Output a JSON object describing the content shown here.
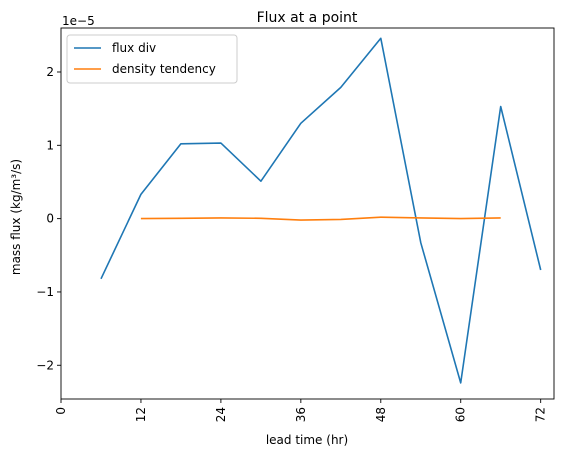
{
  "chart_data": {
    "type": "line",
    "title": "Flux at a point",
    "xlabel": "lead time (hr)",
    "ylabel": "mass flux (kg/m³/s)",
    "offset_label": "1e−5",
    "xlim": [
      0,
      74
    ],
    "ylim": [
      -2.46,
      2.6
    ],
    "xticks": [
      0,
      12,
      24,
      36,
      48,
      60,
      72
    ],
    "xtick_labels": [
      "0",
      "12",
      "24",
      "36",
      "48",
      "60",
      "72"
    ],
    "yticks": [
      -2,
      -1,
      0,
      1,
      2
    ],
    "ytick_labels": [
      "−2",
      "−1",
      "0",
      "1",
      "2"
    ],
    "legend_position": "top-left",
    "grid": false,
    "series": [
      {
        "name": "flux div",
        "color": "#1f77b4",
        "x": [
          6,
          12,
          18,
          24,
          30,
          36,
          42,
          48,
          54,
          60,
          66,
          72
        ],
        "y": [
          -0.82,
          0.33,
          1.02,
          1.03,
          0.51,
          1.3,
          1.79,
          2.46,
          -0.33,
          -2.24,
          1.53,
          -0.7
        ]
      },
      {
        "name": "density tendency",
        "color": "#ff7f0e",
        "x": [
          12,
          18,
          24,
          30,
          36,
          42,
          48,
          54,
          60,
          66
        ],
        "y": [
          0.0,
          0.005,
          0.01,
          0.005,
          -0.02,
          -0.01,
          0.02,
          0.01,
          0.0,
          0.01
        ]
      }
    ]
  }
}
